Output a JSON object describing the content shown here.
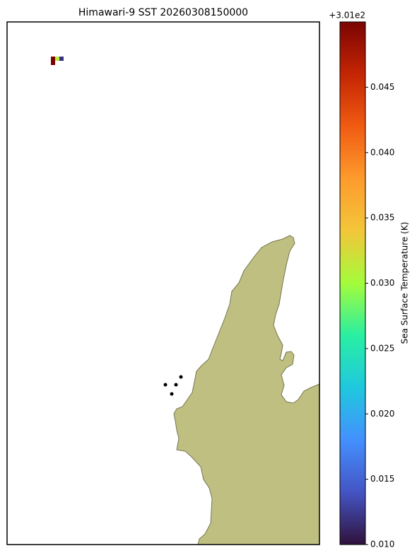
{
  "chart_data": {
    "type": "heatmap",
    "title": "Himawari-9 SST 20260308150000",
    "colorbar_label": "Sea Surface Temperature (K)",
    "colorbar_offset": "+3.01e2",
    "colormap": "turbo",
    "clim": [
      0.01,
      0.05
    ],
    "cticks": [
      {
        "value": 0.01,
        "label": "0.010"
      },
      {
        "value": 0.015,
        "label": "0.015"
      },
      {
        "value": 0.02,
        "label": "0.020"
      },
      {
        "value": 0.025,
        "label": "0.025"
      },
      {
        "value": 0.03,
        "label": "0.030"
      },
      {
        "value": 0.035,
        "label": "0.035"
      },
      {
        "value": 0.04,
        "label": "0.040"
      },
      {
        "value": 0.045,
        "label": "0.045"
      }
    ],
    "values": [
      0.05,
      0.031,
      0.012
    ]
  }
}
